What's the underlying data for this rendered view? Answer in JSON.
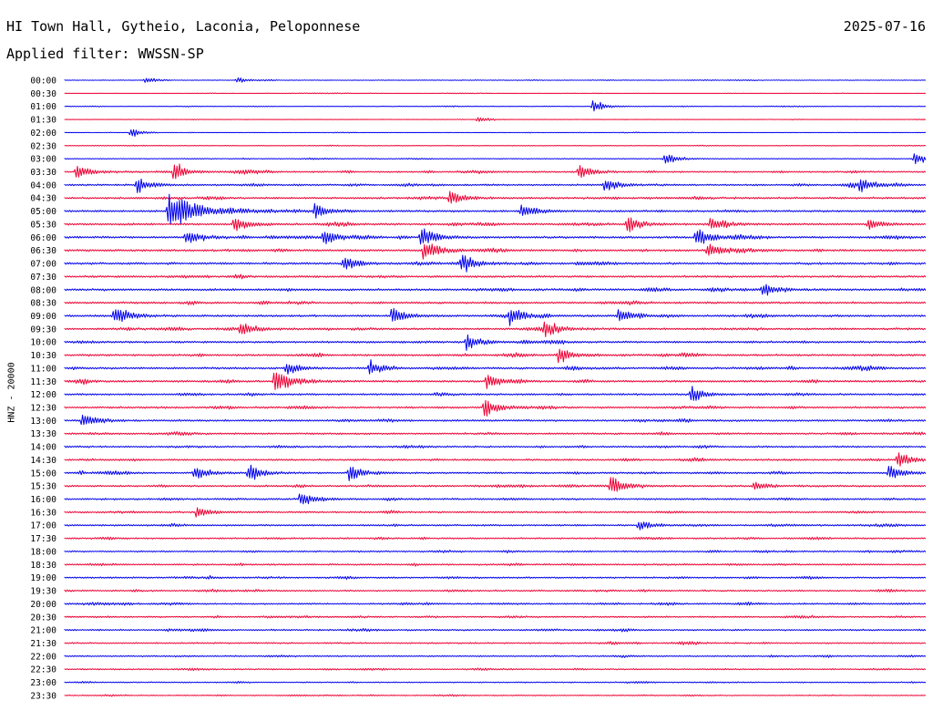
{
  "header": {
    "station": "HI Town Hall, Gytheio, Laconia, Peloponnese",
    "date": "2025-07-16",
    "filter": "Applied filter: WWSSN-SP",
    "channel_label": "HNZ - 20000"
  },
  "colors": {
    "blue_trace": "#0000ee",
    "red_trace": "#ee0033",
    "background": "#ffffff",
    "text": "#000000"
  },
  "chart_data": {
    "type": "line",
    "title": "HI Town Hall, Gytheio, Laconia, Peloponnese",
    "ylabel": "HNZ - 20000",
    "xlabel": "",
    "grid": false,
    "legend": "none",
    "description_of_series": "helicorder",
    "row_interval_minutes": 30,
    "row_labels": [
      "00:00",
      "00:30",
      "01:00",
      "01:30",
      "02:00",
      "02:30",
      "03:00",
      "03:30",
      "04:00",
      "04:30",
      "05:00",
      "05:30",
      "06:00",
      "06:30",
      "07:00",
      "07:30",
      "08:00",
      "08:30",
      "09:00",
      "09:30",
      "10:00",
      "10:30",
      "11:00",
      "11:30",
      "12:00",
      "12:30",
      "13:00",
      "13:30",
      "14:00",
      "14:30",
      "15:00",
      "15:30",
      "16:00",
      "16:30",
      "17:00",
      "17:30",
      "18:00",
      "18:30",
      "19:00",
      "19:30",
      "20:00",
      "20:30",
      "21:00",
      "21:30",
      "22:00",
      "22:30",
      "23:00",
      "23:30"
    ],
    "row_colors": [
      "blue",
      "red"
    ],
    "row_noise_level": [
      0.25,
      0.2,
      0.25,
      0.2,
      0.2,
      0.3,
      0.35,
      0.7,
      0.8,
      0.85,
      0.9,
      0.9,
      0.95,
      0.95,
      0.95,
      0.9,
      0.95,
      0.9,
      0.95,
      0.9,
      0.9,
      0.9,
      0.9,
      0.9,
      0.85,
      0.85,
      0.85,
      0.8,
      0.8,
      0.8,
      0.8,
      0.8,
      0.8,
      0.75,
      0.75,
      0.7,
      0.7,
      0.7,
      0.7,
      0.7,
      0.7,
      0.7,
      0.7,
      0.65,
      0.6,
      0.55,
      0.5,
      0.45
    ],
    "events": [
      {
        "row": "00:00",
        "minute": 2.8,
        "amplitude": 0.5
      },
      {
        "row": "00:00",
        "minute": 6.0,
        "amplitude": 0.4
      },
      {
        "row": "01:00",
        "minute": 18.4,
        "amplitude": 0.8
      },
      {
        "row": "01:30",
        "minute": 14.4,
        "amplitude": 0.5
      },
      {
        "row": "02:00",
        "minute": 2.3,
        "amplitude": 0.6
      },
      {
        "row": "03:00",
        "minute": 20.9,
        "amplitude": 0.8
      },
      {
        "row": "03:00",
        "minute": 29.6,
        "amplitude": 0.8
      },
      {
        "row": "03:30",
        "minute": 0.4,
        "amplitude": 1.0
      },
      {
        "row": "03:30",
        "minute": 3.8,
        "amplitude": 0.8
      },
      {
        "row": "03:30",
        "minute": 3.8,
        "amplitude": 0.5
      },
      {
        "row": "03:30",
        "minute": 17.9,
        "amplitude": 0.9
      },
      {
        "row": "04:00",
        "minute": 2.5,
        "amplitude": 1.0
      },
      {
        "row": "04:00",
        "minute": 18.8,
        "amplitude": 0.9
      },
      {
        "row": "04:00",
        "minute": 27.7,
        "amplitude": 0.9
      },
      {
        "row": "04:30",
        "minute": 13.4,
        "amplitude": 1.0
      },
      {
        "row": "05:00",
        "minute": 3.6,
        "amplitude": 2.6
      },
      {
        "row": "05:00",
        "minute": 8.7,
        "amplitude": 1.0
      },
      {
        "row": "05:00",
        "minute": 15.9,
        "amplitude": 1.0
      },
      {
        "row": "05:30",
        "minute": 5.9,
        "amplitude": 1.0
      },
      {
        "row": "05:30",
        "minute": 19.6,
        "amplitude": 1.0
      },
      {
        "row": "05:30",
        "minute": 22.5,
        "amplitude": 0.9
      },
      {
        "row": "05:30",
        "minute": 28.0,
        "amplitude": 0.8
      },
      {
        "row": "06:00",
        "minute": 4.2,
        "amplitude": 1.0
      },
      {
        "row": "06:00",
        "minute": 9.0,
        "amplitude": 1.0
      },
      {
        "row": "06:00",
        "minute": 12.4,
        "amplitude": 1.3
      },
      {
        "row": "06:00",
        "minute": 22.0,
        "amplitude": 1.2
      },
      {
        "row": "06:30",
        "minute": 12.5,
        "amplitude": 1.3
      },
      {
        "row": "06:30",
        "minute": 22.4,
        "amplitude": 0.9
      },
      {
        "row": "07:00",
        "minute": 9.7,
        "amplitude": 1.0
      },
      {
        "row": "07:00",
        "minute": 13.8,
        "amplitude": 1.0
      },
      {
        "row": "08:00",
        "minute": 24.3,
        "amplitude": 0.9
      },
      {
        "row": "09:00",
        "minute": 1.7,
        "amplitude": 1.0
      },
      {
        "row": "09:00",
        "minute": 11.4,
        "amplitude": 1.0
      },
      {
        "row": "09:00",
        "minute": 15.5,
        "amplitude": 1.1
      },
      {
        "row": "09:00",
        "minute": 19.3,
        "amplitude": 0.9
      },
      {
        "row": "09:30",
        "minute": 6.1,
        "amplitude": 1.0
      },
      {
        "row": "09:30",
        "minute": 16.7,
        "amplitude": 1.0
      },
      {
        "row": "10:00",
        "minute": 14.0,
        "amplitude": 1.0
      },
      {
        "row": "10:30",
        "minute": 17.2,
        "amplitude": 1.0
      },
      {
        "row": "11:00",
        "minute": 7.7,
        "amplitude": 0.9
      },
      {
        "row": "11:00",
        "minute": 10.6,
        "amplitude": 0.9
      },
      {
        "row": "11:30",
        "minute": 7.3,
        "amplitude": 1.5
      },
      {
        "row": "11:30",
        "minute": 14.7,
        "amplitude": 1.0
      },
      {
        "row": "12:00",
        "minute": 21.8,
        "amplitude": 0.9
      },
      {
        "row": "12:30",
        "minute": 14.6,
        "amplitude": 1.1
      },
      {
        "row": "13:00",
        "minute": 0.6,
        "amplitude": 1.0
      },
      {
        "row": "14:30",
        "minute": 29.0,
        "amplitude": 1.0
      },
      {
        "row": "15:00",
        "minute": 4.5,
        "amplitude": 0.9
      },
      {
        "row": "15:00",
        "minute": 6.4,
        "amplitude": 1.0
      },
      {
        "row": "15:00",
        "minute": 9.9,
        "amplitude": 1.0
      },
      {
        "row": "15:00",
        "minute": 28.7,
        "amplitude": 1.0
      },
      {
        "row": "15:30",
        "minute": 19.0,
        "amplitude": 1.2
      },
      {
        "row": "15:30",
        "minute": 24.0,
        "amplitude": 0.7
      },
      {
        "row": "16:00",
        "minute": 8.2,
        "amplitude": 1.0
      },
      {
        "row": "16:30",
        "minute": 4.6,
        "amplitude": 0.8
      },
      {
        "row": "17:00",
        "minute": 20.0,
        "amplitude": 0.7
      }
    ]
  }
}
